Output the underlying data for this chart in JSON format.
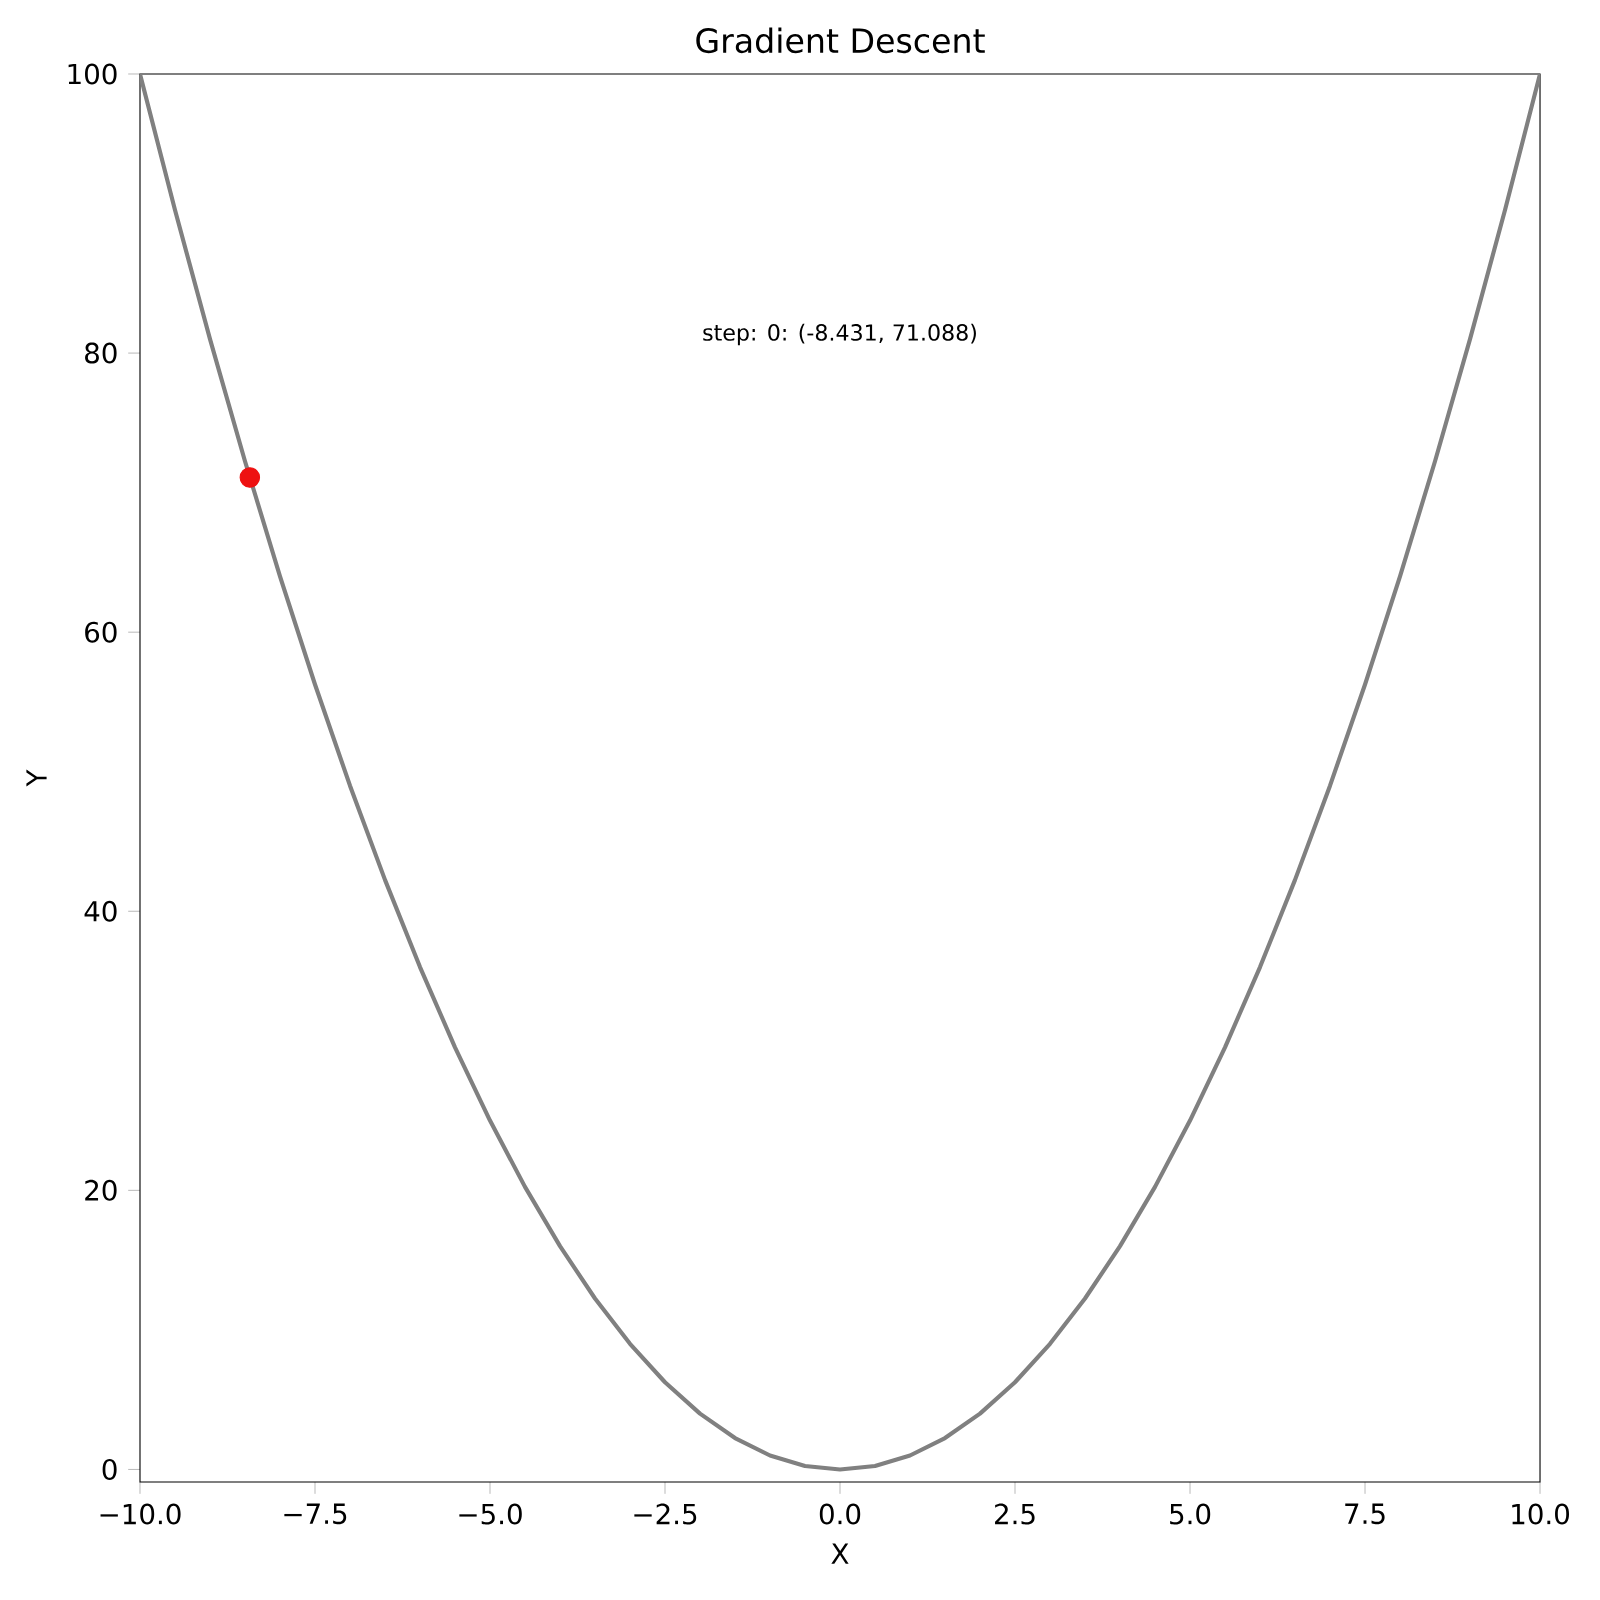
{
  "chart_data": {
    "type": "line",
    "title": "Gradient Descent",
    "xlabel": "X",
    "ylabel": "Y",
    "annotations": [
      "step: 0: (-8.431, 71.088)"
    ],
    "xlim": [
      -10,
      10
    ],
    "ylim": [
      -0.9,
      100
    ],
    "xticks": [
      {
        "value": -10,
        "label": "−10.0"
      },
      {
        "value": -7.5,
        "label": "−7.5"
      },
      {
        "value": -5,
        "label": "−5.0"
      },
      {
        "value": -2.5,
        "label": "−2.5"
      },
      {
        "value": 0,
        "label": "0.0"
      },
      {
        "value": 2.5,
        "label": "2.5"
      },
      {
        "value": 5,
        "label": "5.0"
      },
      {
        "value": 7.5,
        "label": "7.5"
      },
      {
        "value": 10,
        "label": "10.0"
      }
    ],
    "yticks": [
      0,
      20,
      40,
      60,
      80,
      100
    ],
    "series": [
      {
        "color": "#808080",
        "marker": "none",
        "x": [
          -10,
          -9.5,
          -9,
          -8.5,
          -8,
          -7.5,
          -7,
          -6.5,
          -6,
          -5.5,
          -5,
          -4.5,
          -4,
          -3.5,
          -3,
          -2.5,
          -2,
          -1.5,
          -1,
          -0.5,
          0,
          0.5,
          1,
          1.5,
          2,
          2.5,
          3,
          3.5,
          4,
          4.5,
          5,
          5.5,
          6,
          6.5,
          7,
          7.5,
          8,
          8.5,
          9,
          9.5,
          10
        ],
        "values": [
          100,
          90.25,
          81,
          72.25,
          64,
          56.25,
          49,
          42.25,
          36,
          30.25,
          25,
          20.25,
          16,
          12.25,
          9,
          6.25,
          4,
          2.25,
          1,
          0.25,
          0,
          0.25,
          1,
          2.25,
          4,
          6.25,
          9,
          12.25,
          16,
          20.25,
          25,
          30.25,
          36,
          42.25,
          49,
          56.25,
          64,
          72.25,
          81,
          90.25,
          100
        ]
      },
      {
        "type": "scatter",
        "color": "#ee1111",
        "marker": "circle",
        "x": [
          -8.431
        ],
        "values": [
          71.088
        ]
      }
    ]
  }
}
